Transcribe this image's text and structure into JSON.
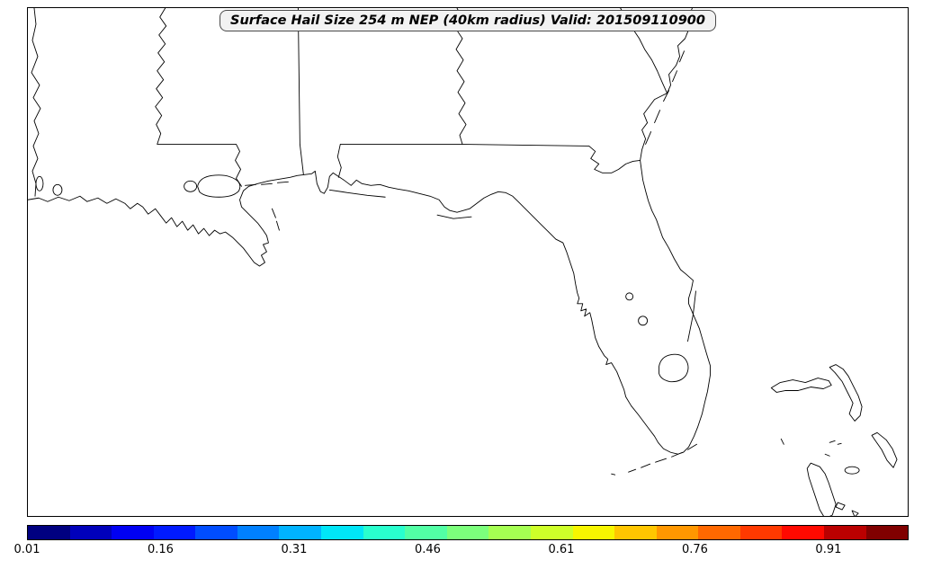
{
  "figure": {
    "title": "Surface Hail Size 254 m NEP (40km radius) Valid: 201509110900"
  },
  "colorbar": {
    "ticks": [
      "0.01",
      "0.16",
      "0.31",
      "0.46",
      "0.61",
      "0.76",
      "0.91"
    ],
    "colors": [
      "#000080",
      "#0000ba",
      "#0000f3",
      "#001aff",
      "#004dff",
      "#0080ff",
      "#00b3ff",
      "#00e6f7",
      "#29ffce",
      "#52ffa5",
      "#7cff7c",
      "#a5ff52",
      "#ceff29",
      "#f7f600",
      "#ffc600",
      "#ff9700",
      "#ff6800",
      "#ff3900",
      "#ff0900",
      "#ba0000",
      "#800000"
    ]
  }
}
